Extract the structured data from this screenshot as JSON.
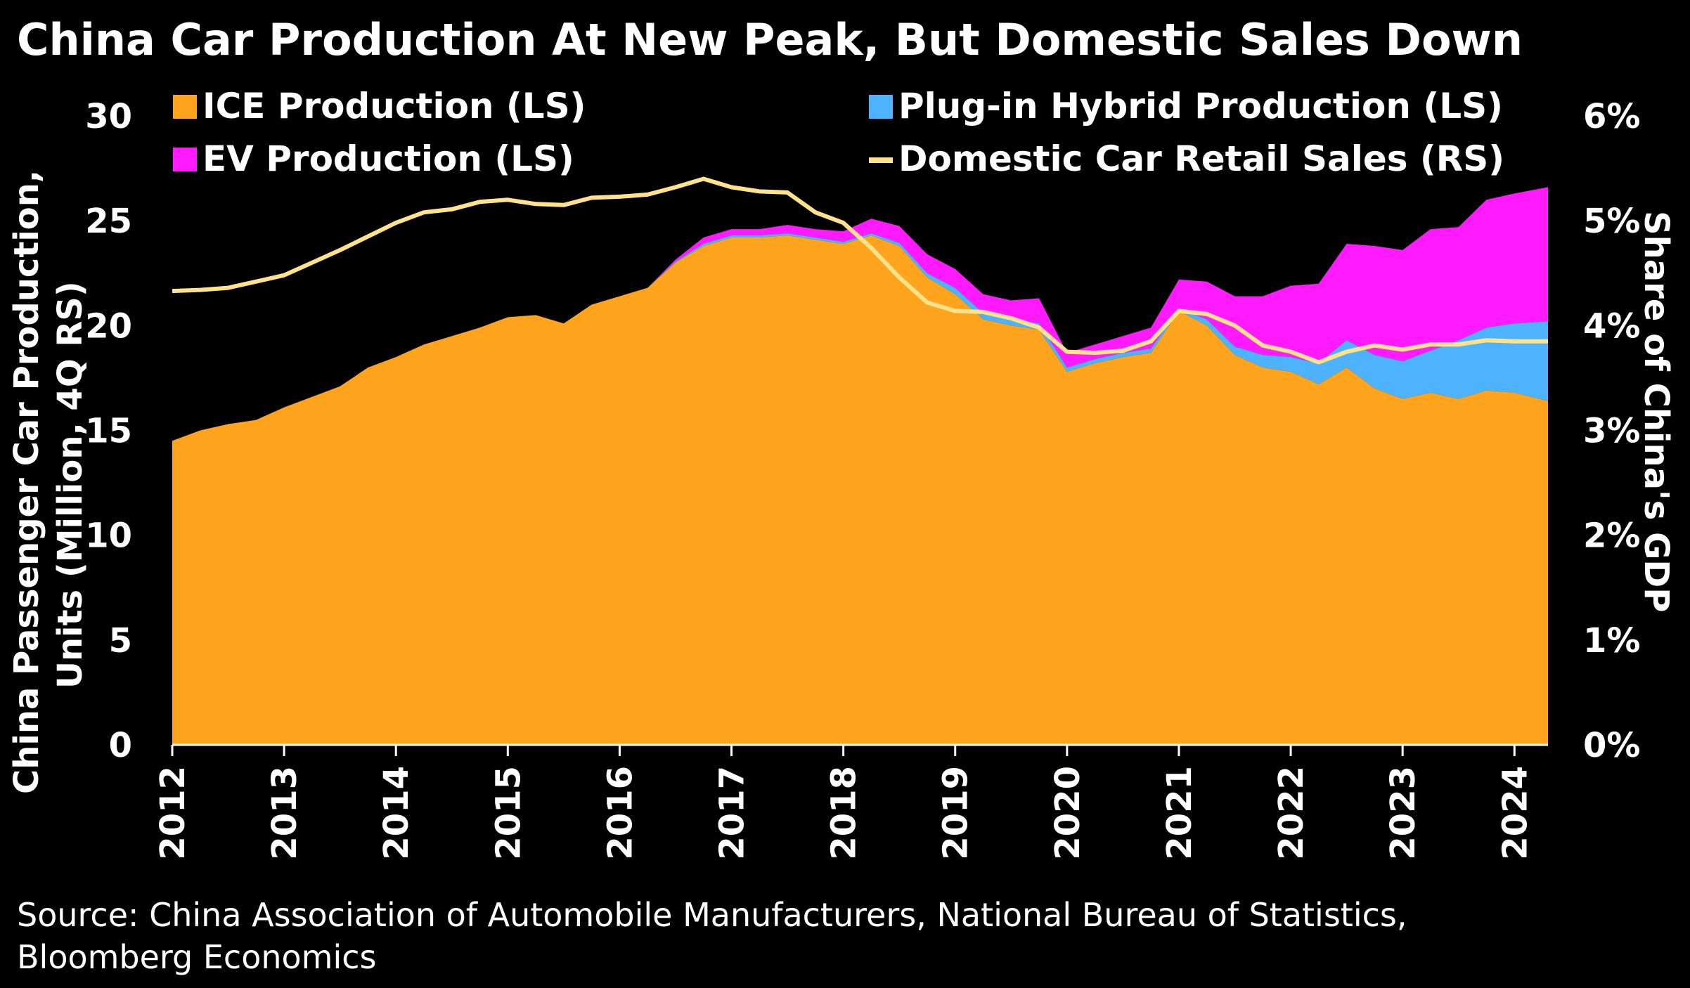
{
  "chart_data": {
    "type": "area",
    "title": "China Car Production At New Peak, But Domestic Sales Down",
    "source": "Source: China Association of Automobile Manufacturers, National Bureau of Statistics, Bloomberg Economics",
    "source_line1": "Source: China Association of Automobile Manufacturers, National Bureau of Statistics,",
    "source_line2": "Bloomberg Economics",
    "ylabel_left_line1": "China Passenger Car Production,",
    "ylabel_left_line2": "Units (Million, 4Q RS)",
    "ylabel_right": "Share of China's GDP",
    "ylim_left": [
      0,
      30
    ],
    "ylim_right": [
      0,
      6
    ],
    "yticks_left": [
      "0",
      "5",
      "10",
      "15",
      "20",
      "25",
      "30"
    ],
    "yticks_right": [
      "0%",
      "1%",
      "2%",
      "3%",
      "4%",
      "5%",
      "6%"
    ],
    "xlim": [
      2012,
      2024.3
    ],
    "xticks": [
      "2012",
      "2013",
      "2014",
      "2015",
      "2016",
      "2017",
      "2018",
      "2019",
      "2020",
      "2021",
      "2022",
      "2023",
      "2024"
    ],
    "colors": {
      "ice": "#FFA41C",
      "phev": "#4DB3FF",
      "ev": "#FF1AFF",
      "sales": "#FFE28A",
      "background": "#000000",
      "text": "#FFFFFF"
    },
    "legend": {
      "ice": "ICE Production (LS)",
      "phev": "Plug-in Hybrid Production (LS)",
      "ev": "EV Production (LS)",
      "sales": "Domestic Car Retail Sales (RS)"
    },
    "x": [
      2012.0,
      2012.25,
      2012.5,
      2012.75,
      2013.0,
      2013.25,
      2013.5,
      2013.75,
      2014.0,
      2014.25,
      2014.5,
      2014.75,
      2015.0,
      2015.25,
      2015.5,
      2015.75,
      2016.0,
      2016.25,
      2016.5,
      2016.75,
      2017.0,
      2017.25,
      2017.5,
      2017.75,
      2018.0,
      2018.25,
      2018.5,
      2018.75,
      2019.0,
      2019.25,
      2019.5,
      2019.75,
      2020.0,
      2020.25,
      2020.5,
      2020.75,
      2021.0,
      2021.25,
      2021.5,
      2021.75,
      2022.0,
      2022.25,
      2022.5,
      2022.75,
      2023.0,
      2023.25,
      2023.5,
      2023.75,
      2024.0,
      2024.3
    ],
    "series": [
      {
        "name": "ICE Production (LS)",
        "axis": "left",
        "values": [
          14.5,
          15.0,
          15.3,
          15.5,
          16.1,
          16.6,
          17.1,
          18.0,
          18.5,
          19.1,
          19.5,
          19.9,
          20.4,
          20.5,
          20.1,
          21.0,
          21.4,
          21.8,
          23.0,
          23.8,
          24.2,
          24.2,
          24.3,
          24.1,
          23.9,
          24.3,
          23.8,
          22.3,
          21.5,
          20.3,
          20.0,
          19.8,
          17.8,
          18.2,
          18.5,
          18.7,
          20.7,
          20.0,
          18.6,
          18.0,
          17.8,
          17.2,
          18.0,
          17.0,
          16.5,
          16.8,
          16.5,
          16.9,
          16.8,
          16.4
        ]
      },
      {
        "name": "Plug-in Hybrid Production (LS)",
        "axis": "left",
        "values": [
          0.0,
          0.0,
          0.0,
          0.0,
          0.0,
          0.0,
          0.0,
          0.0,
          0.0,
          0.0,
          0.0,
          0.0,
          0.0,
          0.0,
          0.0,
          0.0,
          0.0,
          0.0,
          0.05,
          0.1,
          0.1,
          0.1,
          0.1,
          0.1,
          0.1,
          0.1,
          0.15,
          0.2,
          0.3,
          0.3,
          0.3,
          0.3,
          0.2,
          0.2,
          0.2,
          0.2,
          0.1,
          0.3,
          0.4,
          0.6,
          0.7,
          1.0,
          1.3,
          1.6,
          1.8,
          2.0,
          2.8,
          3.0,
          3.3,
          3.8
        ]
      },
      {
        "name": "EV Production (LS)",
        "axis": "left",
        "values": [
          0.0,
          0.0,
          0.0,
          0.0,
          0.0,
          0.0,
          0.0,
          0.0,
          0.0,
          0.0,
          0.0,
          0.0,
          0.0,
          0.0,
          0.0,
          0.0,
          0.0,
          0.0,
          0.1,
          0.3,
          0.3,
          0.3,
          0.4,
          0.4,
          0.5,
          0.7,
          0.8,
          0.9,
          0.9,
          0.9,
          0.9,
          1.2,
          0.7,
          0.7,
          0.8,
          1.0,
          1.4,
          1.8,
          2.4,
          2.8,
          3.4,
          3.8,
          4.6,
          5.2,
          5.3,
          5.8,
          5.4,
          6.1,
          6.2,
          6.4
        ]
      },
      {
        "name": "Domestic Car Retail Sales (RS)",
        "axis": "right",
        "type": "line",
        "values": [
          4.33,
          4.34,
          4.36,
          4.42,
          4.48,
          4.6,
          4.72,
          4.85,
          4.98,
          5.08,
          5.11,
          5.18,
          5.2,
          5.16,
          5.15,
          5.22,
          5.23,
          5.25,
          5.32,
          5.4,
          5.32,
          5.28,
          5.27,
          5.08,
          4.98,
          4.74,
          4.46,
          4.22,
          4.14,
          4.13,
          4.07,
          3.98,
          3.75,
          3.74,
          3.76,
          3.85,
          4.14,
          4.11,
          4.0,
          3.81,
          3.75,
          3.65,
          3.75,
          3.81,
          3.77,
          3.82,
          3.82,
          3.86,
          3.85,
          3.85
        ]
      }
    ]
  }
}
